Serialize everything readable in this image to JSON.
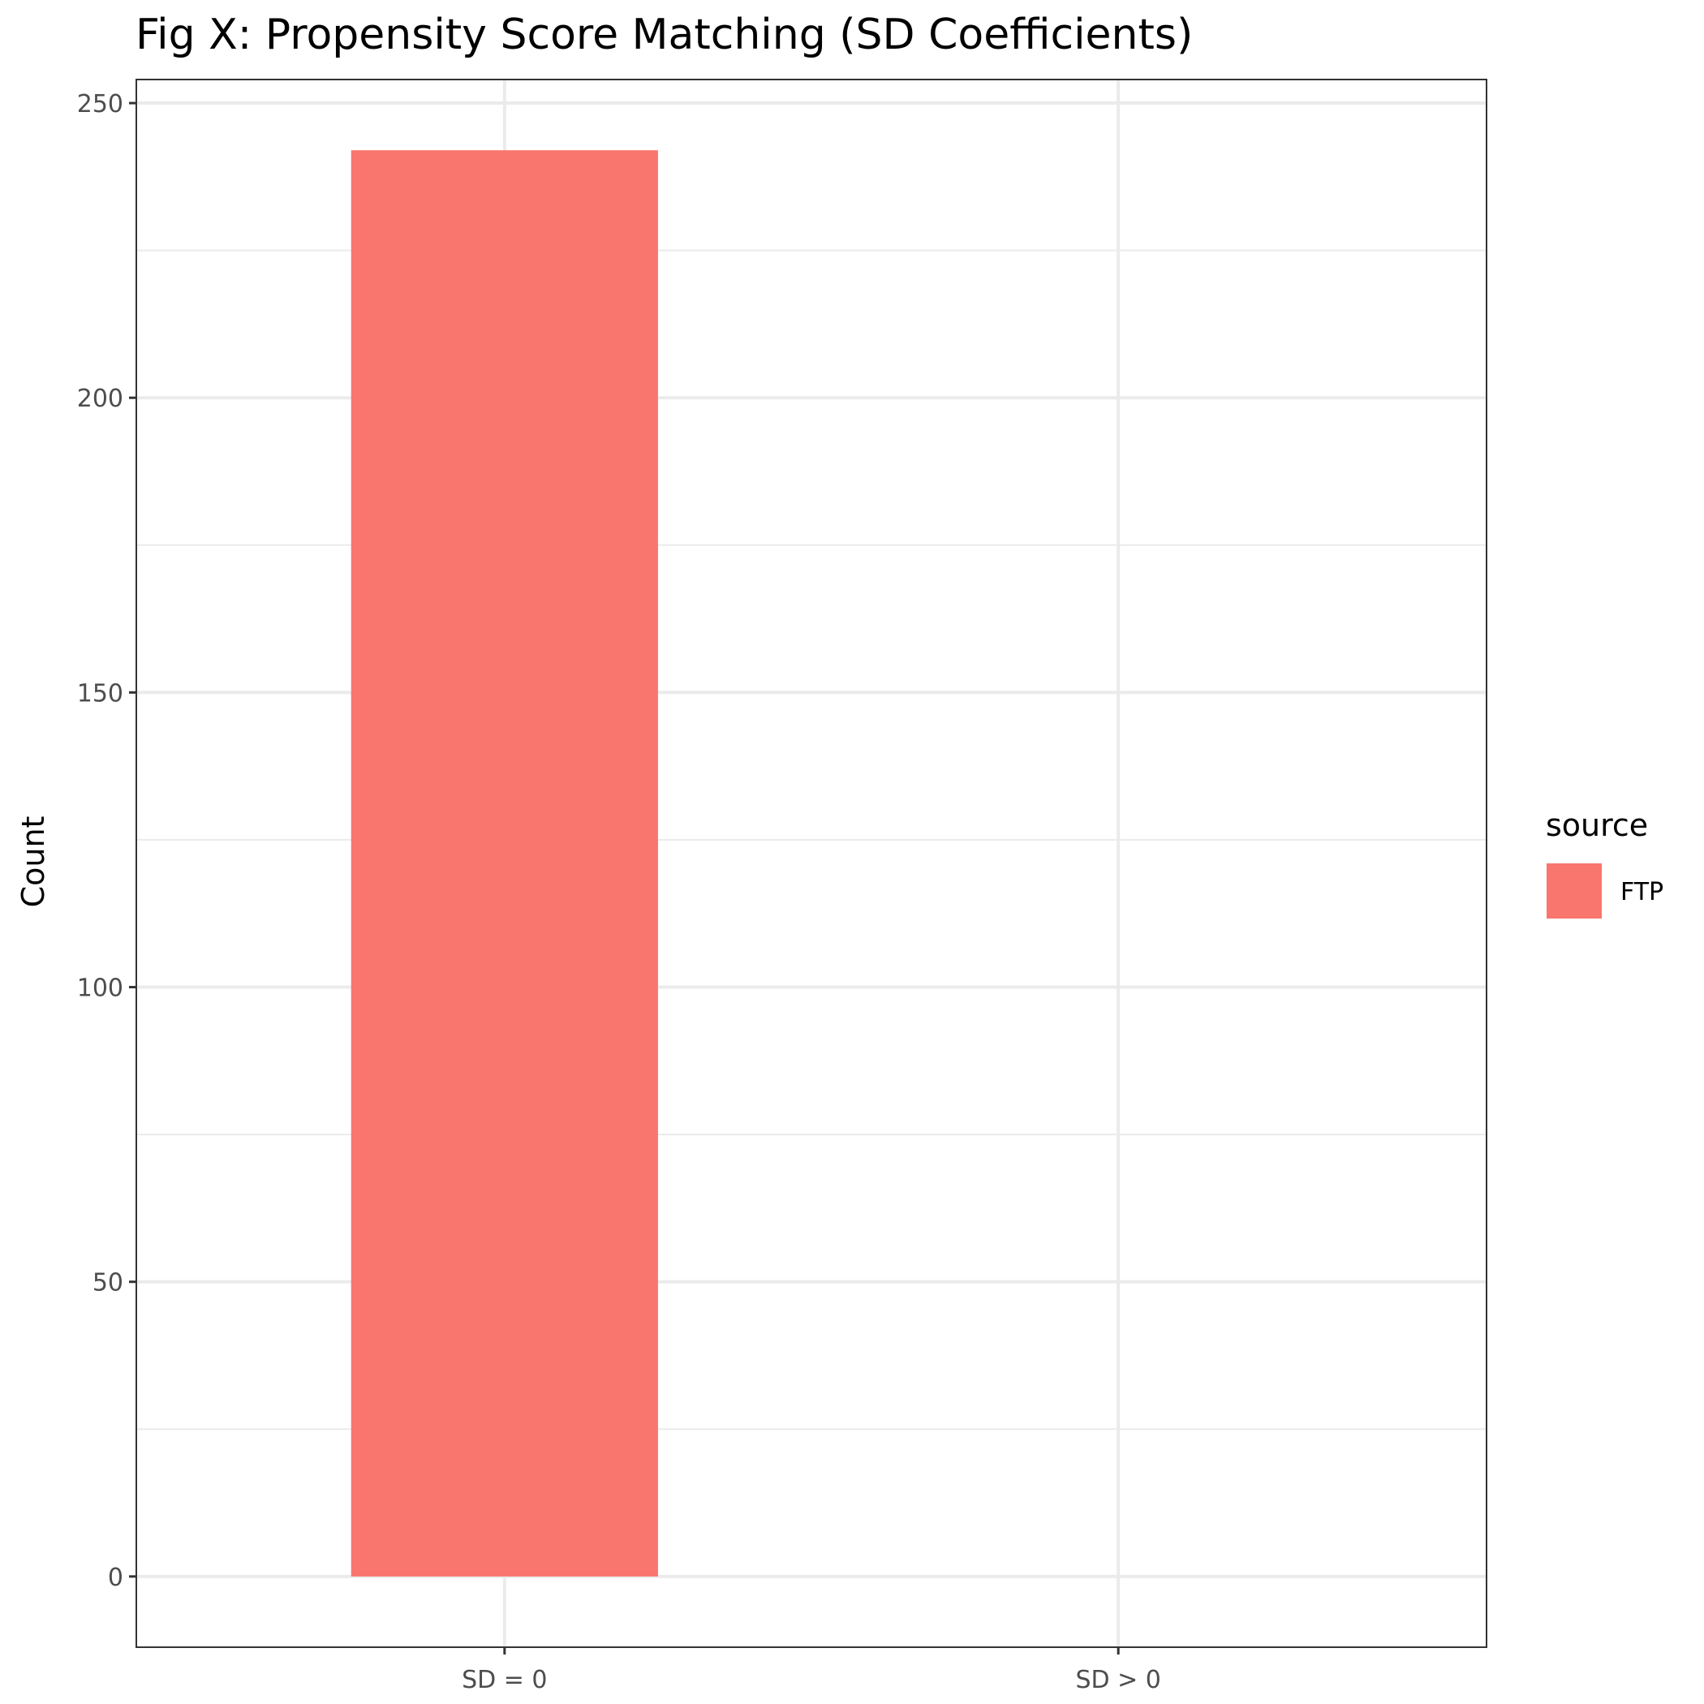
{
  "chart_data": {
    "type": "bar",
    "title": "Fig X: Propensity Score Matching (SD Coefficients)",
    "xlabel": "",
    "ylabel": "Count",
    "categories": [
      "SD = 0",
      "SD > 0"
    ],
    "series": [
      {
        "name": "FTP",
        "values": [
          242,
          0
        ],
        "color": "#F8766D"
      }
    ],
    "ylim": [
      -12,
      254
    ],
    "yticks": [
      0,
      50,
      100,
      150,
      200,
      250
    ],
    "grid": true,
    "legend": {
      "title": "source",
      "position": "right"
    },
    "colors": {
      "grid": "#ebebeb",
      "panel_border": "#333333",
      "tick_text": "#4d4d4d"
    }
  }
}
